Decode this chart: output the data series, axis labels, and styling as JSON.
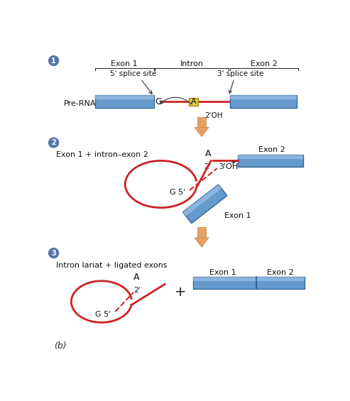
{
  "bg_color": "#ffffff",
  "step1_label": "Pre-RNA",
  "step2_label": "Exon 1 + intron–exon 2",
  "step3_label": "Intron lariat + ligated exons",
  "footer": "(b)",
  "exon_color": "#6699cc",
  "intron_color": "#cc2222",
  "arrow_color": "#e8a060",
  "exon1_label": "Exon 1",
  "intron_label": "Intron",
  "exon2_label": "Exon 2",
  "splice5_label": "5' splice site",
  "splice3_label": "3' splice site"
}
